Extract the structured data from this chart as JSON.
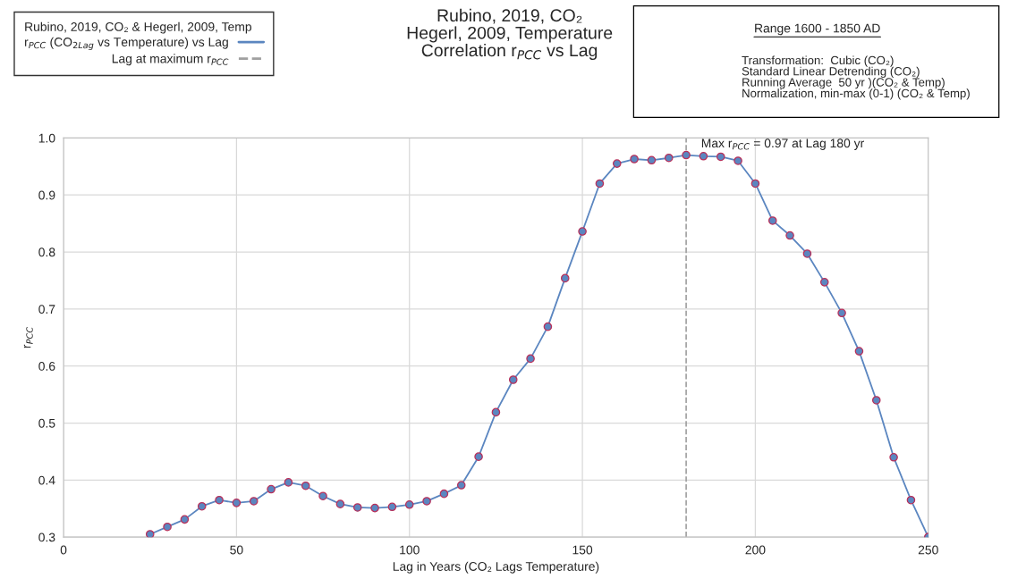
{
  "chart_data": {
    "type": "line",
    "title": "Rubino, 2019, CO₂\nHegerl, 2009, Temperature\nCorrelation r$_{PCC}$ vs Lag",
    "xlabel": "Lag in Years (CO₂ Lags Temperature)",
    "ylabel": "r$_{PCC}$",
    "legend_title": "Rubino, 2019, CO₂ & Hegerl, 2009, Temp",
    "x": [
      25,
      30,
      35,
      40,
      45,
      50,
      55,
      60,
      65,
      70,
      75,
      80,
      85,
      90,
      95,
      100,
      105,
      110,
      115,
      120,
      125,
      130,
      135,
      140,
      145,
      150,
      155,
      160,
      165,
      170,
      175,
      180,
      185,
      190,
      195,
      200,
      205,
      210,
      215,
      220,
      225,
      230,
      235,
      240,
      245,
      250
    ],
    "series": [
      {
        "name": "r$_{PCC}$ (CO$_{2Lag}$ vs Temperature) vs Lag",
        "color": "#5b86c0",
        "values": [
          0.305,
          0.318,
          0.331,
          0.354,
          0.365,
          0.36,
          0.363,
          0.384,
          0.396,
          0.39,
          0.372,
          0.358,
          0.352,
          0.351,
          0.353,
          0.357,
          0.363,
          0.376,
          0.391,
          0.441,
          0.519,
          0.576,
          0.613,
          0.669,
          0.754,
          0.836,
          0.92,
          0.955,
          0.963,
          0.961,
          0.965,
          0.97,
          0.968,
          0.967,
          0.96,
          0.92,
          0.855,
          0.829,
          0.797,
          0.747,
          0.693,
          0.626,
          0.54,
          0.44,
          0.365,
          0.3
        ]
      }
    ],
    "ref_lines": [
      {
        "axis": "x",
        "value": 180,
        "label": "Lag at maximum r$_{PCC}$",
        "color": "#a0a0a0",
        "line_style": "dashed"
      }
    ],
    "annotations": [
      {
        "text": "Max r$_{PCC}$ = 0.97 at Lag 180 yr",
        "x": 180,
        "y": 0.97
      },
      "Range 1600 - 1850 AD",
      "Transformation:  Cubic (CO₂)\nStandard Linear Detrending (CO₂)\nRunning Average  50 yr )(CO₂ & Temp)\nNormalization, min-max (0-1) (CO₂ & Temp)"
    ],
    "xlim": [
      0,
      250
    ],
    "xticks": [
      0,
      50,
      100,
      150,
      200,
      250
    ],
    "ylim": [
      0.3,
      1.0
    ],
    "yticks": [
      0.3,
      0.4,
      0.5,
      0.6,
      0.7,
      0.8,
      0.9,
      {
        "value": 1.0,
        "label": "1.0"
      }
    ],
    "grid": true,
    "legend": "top left",
    "marker": "circle",
    "line_style": "solid"
  }
}
